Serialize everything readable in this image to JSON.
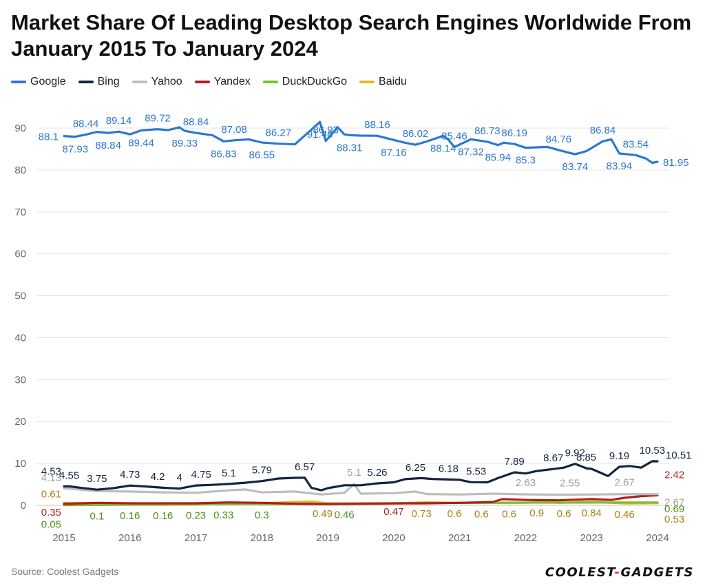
{
  "chart_data": {
    "type": "line",
    "title": "Market Share Of Leading Desktop Search Engines Worldwide From January 2015 To January 2024",
    "xlabel": "",
    "ylabel": "",
    "xlim": [
      2015,
      2024
    ],
    "ylim": [
      0,
      95
    ],
    "grid": true,
    "legend_position": "top-left",
    "x_ticks": [
      2015,
      2016,
      2017,
      2018,
      2019,
      2020,
      2021,
      2022,
      2023,
      2024
    ],
    "y_ticks": [
      0,
      10,
      20,
      30,
      40,
      50,
      60,
      70,
      80,
      90
    ],
    "series": [
      {
        "name": "Google",
        "color": "#2a78d4",
        "points": [
          [
            2015.0,
            88.1
          ],
          [
            2015.17,
            87.93
          ],
          [
            2015.33,
            88.44
          ],
          [
            2015.5,
            89.1
          ],
          [
            2015.67,
            88.84
          ],
          [
            2015.83,
            89.14
          ],
          [
            2016.0,
            88.5
          ],
          [
            2016.17,
            89.44
          ],
          [
            2016.42,
            89.72
          ],
          [
            2016.58,
            89.5
          ],
          [
            2016.75,
            90.2
          ],
          [
            2016.83,
            89.33
          ],
          [
            2017.0,
            88.84
          ],
          [
            2017.25,
            88.3
          ],
          [
            2017.42,
            86.83
          ],
          [
            2017.58,
            87.08
          ],
          [
            2017.8,
            87.3
          ],
          [
            2018.0,
            86.55
          ],
          [
            2018.25,
            86.27
          ],
          [
            2018.5,
            86.1
          ],
          [
            2018.75,
            89.6
          ],
          [
            2018.88,
            91.46
          ],
          [
            2018.97,
            86.93
          ],
          [
            2019.15,
            90.2
          ],
          [
            2019.25,
            88.5
          ],
          [
            2019.33,
            88.31
          ],
          [
            2019.5,
            88.2
          ],
          [
            2019.75,
            88.16
          ],
          [
            2020.0,
            87.16
          ],
          [
            2020.17,
            86.5
          ],
          [
            2020.33,
            86.02
          ],
          [
            2020.5,
            86.8
          ],
          [
            2020.75,
            88.14
          ],
          [
            2020.83,
            87.2
          ],
          [
            2020.92,
            85.46
          ],
          [
            2021.17,
            87.32
          ],
          [
            2021.42,
            86.73
          ],
          [
            2021.58,
            85.94
          ],
          [
            2021.67,
            86.5
          ],
          [
            2021.83,
            86.19
          ],
          [
            2022.0,
            85.3
          ],
          [
            2022.33,
            85.5
          ],
          [
            2022.5,
            84.76
          ],
          [
            2022.75,
            83.74
          ],
          [
            2022.92,
            84.5
          ],
          [
            2023.17,
            86.84
          ],
          [
            2023.3,
            87.3
          ],
          [
            2023.42,
            83.94
          ],
          [
            2023.67,
            83.54
          ],
          [
            2023.83,
            82.7
          ],
          [
            2023.92,
            81.7
          ],
          [
            2024.0,
            81.95
          ]
        ],
        "labels": [
          {
            "x": 2015.0,
            "text": "88.1"
          },
          {
            "x": 2015.17,
            "text": "87.93"
          },
          {
            "x": 2015.33,
            "text": "88.44"
          },
          {
            "x": 2015.67,
            "text": "88.84"
          },
          {
            "x": 2015.83,
            "text": "89.14"
          },
          {
            "x": 2016.17,
            "text": "89.44"
          },
          {
            "x": 2016.42,
            "text": "89.72"
          },
          {
            "x": 2016.83,
            "text": "89.33"
          },
          {
            "x": 2017.0,
            "text": "88.84"
          },
          {
            "x": 2017.42,
            "text": "86.83"
          },
          {
            "x": 2017.58,
            "text": "87.08"
          },
          {
            "x": 2018.0,
            "text": "86.55"
          },
          {
            "x": 2018.25,
            "text": "86.27"
          },
          {
            "x": 2018.88,
            "text": "91.46"
          },
          {
            "x": 2018.97,
            "text": "86.93"
          },
          {
            "x": 2019.33,
            "text": "88.31"
          },
          {
            "x": 2019.75,
            "text": "88.16"
          },
          {
            "x": 2020.0,
            "text": "87.16"
          },
          {
            "x": 2020.33,
            "text": "86.02"
          },
          {
            "x": 2020.75,
            "text": "88.14"
          },
          {
            "x": 2020.92,
            "text": "85.46"
          },
          {
            "x": 2021.17,
            "text": "87.32"
          },
          {
            "x": 2021.42,
            "text": "86.73"
          },
          {
            "x": 2021.58,
            "text": "85.94"
          },
          {
            "x": 2021.83,
            "text": "86.19"
          },
          {
            "x": 2022.0,
            "text": "85.3"
          },
          {
            "x": 2022.5,
            "text": "84.76"
          },
          {
            "x": 2022.75,
            "text": "83.74"
          },
          {
            "x": 2023.17,
            "text": "86.84"
          },
          {
            "x": 2023.42,
            "text": "83.94"
          },
          {
            "x": 2023.67,
            "text": "83.54"
          },
          {
            "x": 2024.0,
            "text": "81.95"
          }
        ]
      },
      {
        "name": "Bing",
        "color": "#13253f",
        "points": [
          [
            2015.0,
            4.53
          ],
          [
            2015.08,
            4.55
          ],
          [
            2015.25,
            4.2
          ],
          [
            2015.5,
            3.75
          ],
          [
            2015.75,
            4.1
          ],
          [
            2016.0,
            4.73
          ],
          [
            2016.25,
            4.5
          ],
          [
            2016.5,
            4.2
          ],
          [
            2016.75,
            4.0
          ],
          [
            2017.0,
            4.75
          ],
          [
            2017.25,
            4.9
          ],
          [
            2017.5,
            5.1
          ],
          [
            2017.75,
            5.4
          ],
          [
            2018.0,
            5.79
          ],
          [
            2018.25,
            6.4
          ],
          [
            2018.5,
            6.57
          ],
          [
            2018.65,
            6.6
          ],
          [
            2018.75,
            4.2
          ],
          [
            2018.9,
            3.6
          ],
          [
            2019.0,
            4.1
          ],
          [
            2019.25,
            4.8
          ],
          [
            2019.5,
            4.8
          ],
          [
            2019.75,
            5.26
          ],
          [
            2020.0,
            5.5
          ],
          [
            2020.17,
            6.25
          ],
          [
            2020.42,
            6.5
          ],
          [
            2020.58,
            6.3
          ],
          [
            2020.83,
            6.18
          ],
          [
            2021.0,
            6.1
          ],
          [
            2021.17,
            5.53
          ],
          [
            2021.42,
            5.5
          ],
          [
            2021.58,
            6.5
          ],
          [
            2021.83,
            7.89
          ],
          [
            2022.0,
            7.6
          ],
          [
            2022.17,
            8.2
          ],
          [
            2022.42,
            8.67
          ],
          [
            2022.58,
            9.0
          ],
          [
            2022.75,
            9.92
          ],
          [
            2022.92,
            8.85
          ],
          [
            2023.0,
            8.7
          ],
          [
            2023.25,
            7.0
          ],
          [
            2023.42,
            9.19
          ],
          [
            2023.58,
            9.4
          ],
          [
            2023.75,
            9.0
          ],
          [
            2023.92,
            10.53
          ],
          [
            2024.0,
            10.51
          ]
        ],
        "labels": [
          {
            "x": 2015.0,
            "text": "4.53"
          },
          {
            "x": 2015.08,
            "text": "4.55"
          },
          {
            "x": 2015.5,
            "text": "3.75"
          },
          {
            "x": 2016.0,
            "text": "4.73"
          },
          {
            "x": 2016.42,
            "text": "4.2"
          },
          {
            "x": 2016.75,
            "text": "4"
          },
          {
            "x": 2017.08,
            "text": "4.75"
          },
          {
            "x": 2017.5,
            "text": "5.1"
          },
          {
            "x": 2018.0,
            "text": "5.79"
          },
          {
            "x": 2018.65,
            "text": "6.57"
          },
          {
            "x": 2019.75,
            "text": "5.26"
          },
          {
            "x": 2020.33,
            "text": "6.25"
          },
          {
            "x": 2020.83,
            "text": "6.18"
          },
          {
            "x": 2021.25,
            "text": "5.53"
          },
          {
            "x": 2021.83,
            "text": "7.89"
          },
          {
            "x": 2022.42,
            "text": "8.67"
          },
          {
            "x": 2022.75,
            "text": "9.92"
          },
          {
            "x": 2022.92,
            "text": "8.85"
          },
          {
            "x": 2023.42,
            "text": "9.19"
          },
          {
            "x": 2023.92,
            "text": "10.53"
          },
          {
            "x": 2024.0,
            "text": "10.51"
          }
        ]
      },
      {
        "name": "Yahoo",
        "color": "#bdbdbd",
        "points": [
          [
            2015.0,
            4.13
          ],
          [
            2015.5,
            3.4
          ],
          [
            2016.0,
            3.3
          ],
          [
            2016.5,
            3.1
          ],
          [
            2017.0,
            3.0
          ],
          [
            2017.5,
            3.6
          ],
          [
            2017.75,
            3.8
          ],
          [
            2018.0,
            3.1
          ],
          [
            2018.5,
            3.3
          ],
          [
            2018.9,
            2.6
          ],
          [
            2019.25,
            3.0
          ],
          [
            2019.4,
            5.1
          ],
          [
            2019.5,
            2.8
          ],
          [
            2020.0,
            2.9
          ],
          [
            2020.33,
            3.3
          ],
          [
            2020.5,
            2.7
          ],
          [
            2021.0,
            2.6
          ],
          [
            2021.5,
            2.8
          ],
          [
            2022.0,
            2.63
          ],
          [
            2022.5,
            2.55
          ],
          [
            2023.0,
            2.6
          ],
          [
            2023.5,
            2.67
          ],
          [
            2024.0,
            2.67
          ]
        ],
        "labels": [
          {
            "x": 2015.0,
            "text": "4.13"
          },
          {
            "x": 2019.4,
            "text": "5.1"
          },
          {
            "x": 2022.0,
            "text": "2.63"
          },
          {
            "x": 2022.67,
            "text": "2.55"
          },
          {
            "x": 2023.5,
            "text": "2.67"
          },
          {
            "x": 2024.0,
            "text": "2.67"
          }
        ]
      },
      {
        "name": "Yandex",
        "color": "#b01e1e",
        "points": [
          [
            2015.0,
            0.35
          ],
          [
            2015.5,
            0.6
          ],
          [
            2016.0,
            0.5
          ],
          [
            2016.5,
            0.5
          ],
          [
            2017.0,
            0.5
          ],
          [
            2017.5,
            0.7
          ],
          [
            2018.0,
            0.6
          ],
          [
            2018.5,
            0.4
          ],
          [
            2019.0,
            0.3
          ],
          [
            2019.5,
            0.4
          ],
          [
            2020.0,
            0.47
          ],
          [
            2020.5,
            0.5
          ],
          [
            2021.0,
            0.6
          ],
          [
            2021.5,
            0.8
          ],
          [
            2021.65,
            1.5
          ],
          [
            2022.0,
            1.3
          ],
          [
            2022.5,
            1.2
          ],
          [
            2023.0,
            1.5
          ],
          [
            2023.3,
            1.3
          ],
          [
            2023.5,
            1.8
          ],
          [
            2023.75,
            2.2
          ],
          [
            2024.0,
            2.42
          ]
        ],
        "labels": [
          {
            "x": 2015.0,
            "text": "0.35"
          },
          {
            "x": 2020.0,
            "text": "0.47"
          },
          {
            "x": 2024.0,
            "text": "2.42"
          }
        ]
      },
      {
        "name": "DuckDuckGo",
        "color": "#7cc02a",
        "points": [
          [
            2015.0,
            0.05
          ],
          [
            2015.5,
            0.1
          ],
          [
            2016.0,
            0.16
          ],
          [
            2016.5,
            0.16
          ],
          [
            2017.0,
            0.23
          ],
          [
            2017.5,
            0.33
          ],
          [
            2018.0,
            0.3
          ],
          [
            2018.5,
            0.4
          ],
          [
            2019.0,
            0.4
          ],
          [
            2019.5,
            0.46
          ],
          [
            2020.0,
            0.5
          ],
          [
            2020.5,
            0.55
          ],
          [
            2021.0,
            0.6
          ],
          [
            2021.5,
            0.62
          ],
          [
            2022.0,
            0.65
          ],
          [
            2022.5,
            0.66
          ],
          [
            2023.0,
            0.68
          ],
          [
            2023.5,
            0.69
          ],
          [
            2024.0,
            0.69
          ]
        ],
        "labels": [
          {
            "x": 2015.0,
            "text": "0.05"
          },
          {
            "x": 2015.5,
            "text": "0.1"
          },
          {
            "x": 2016.0,
            "text": "0.16"
          },
          {
            "x": 2016.5,
            "text": "0.16"
          },
          {
            "x": 2017.0,
            "text": "0.23"
          },
          {
            "x": 2017.42,
            "text": "0.33"
          },
          {
            "x": 2018.0,
            "text": "0.3"
          },
          {
            "x": 2019.25,
            "text": "0.46"
          },
          {
            "x": 2024.0,
            "text": "0.69"
          }
        ]
      },
      {
        "name": "Baidu",
        "color": "#e7b526",
        "points": [
          [
            2015.0,
            0.61
          ],
          [
            2015.5,
            0.5
          ],
          [
            2016.0,
            0.4
          ],
          [
            2016.5,
            0.4
          ],
          [
            2017.0,
            0.5
          ],
          [
            2017.5,
            0.6
          ],
          [
            2018.0,
            0.5
          ],
          [
            2018.5,
            0.8
          ],
          [
            2018.75,
            0.9
          ],
          [
            2019.0,
            0.49
          ],
          [
            2019.5,
            0.5
          ],
          [
            2020.0,
            0.5
          ],
          [
            2020.5,
            0.73
          ],
          [
            2021.0,
            0.6
          ],
          [
            2021.5,
            0.6
          ],
          [
            2022.0,
            0.6
          ],
          [
            2022.25,
            0.9
          ],
          [
            2022.5,
            0.6
          ],
          [
            2023.0,
            0.84
          ],
          [
            2023.5,
            0.46
          ],
          [
            2024.0,
            0.53
          ]
        ],
        "labels": [
          {
            "x": 2015.0,
            "text": "0.61"
          },
          {
            "x": 2018.92,
            "text": "0.49"
          },
          {
            "x": 2020.42,
            "text": "0.73"
          },
          {
            "x": 2020.92,
            "text": "0.6"
          },
          {
            "x": 2021.33,
            "text": "0.6"
          },
          {
            "x": 2021.75,
            "text": "0.6"
          },
          {
            "x": 2022.17,
            "text": "0.9"
          },
          {
            "x": 2022.58,
            "text": "0.6"
          },
          {
            "x": 2023.0,
            "text": "0.84"
          },
          {
            "x": 2023.5,
            "text": "0.46"
          },
          {
            "x": 2024.0,
            "text": "0.53"
          }
        ]
      }
    ]
  },
  "footer": {
    "source": "Source: Coolest Gadgets"
  },
  "logo": {
    "part1": "COOLEST",
    "dash": "-",
    "part2": "GADGETS"
  }
}
